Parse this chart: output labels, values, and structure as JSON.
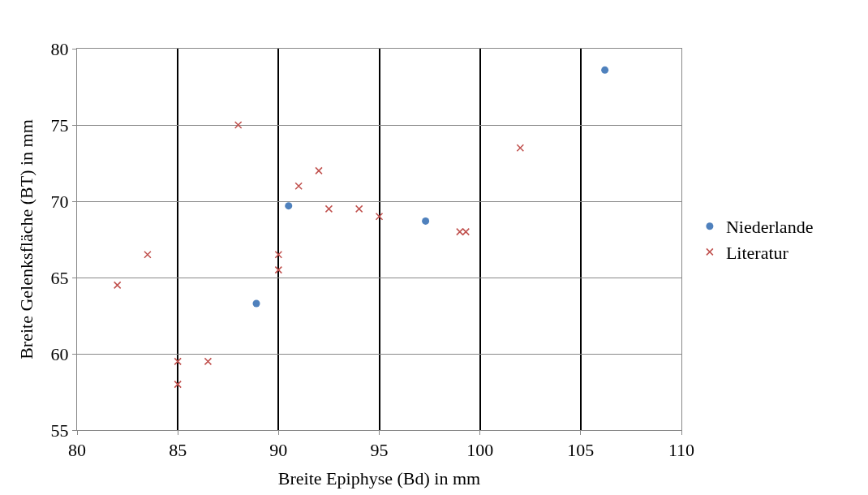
{
  "chart_data": {
    "type": "scatter",
    "xlabel": "Breite Epiphyse (Bd) in mm",
    "ylabel": "Breite Gelenksfläche (BT) in mm",
    "xlim": [
      80,
      110
    ],
    "xticks": [
      80,
      85,
      90,
      95,
      100,
      105,
      110
    ],
    "ylim": [
      55,
      80
    ],
    "yticks": [
      55,
      60,
      65,
      70,
      75,
      80
    ],
    "grid": true,
    "legend": "right",
    "series": [
      {
        "name": "Niederlande",
        "color": "#4f81bd",
        "marker": "circle",
        "x": [
          88.9,
          90.5,
          97.3,
          106.2
        ],
        "values": [
          63.3,
          69.7,
          68.7,
          78.6
        ]
      },
      {
        "name": "Literatur",
        "color": "#c0504d",
        "marker": "cross",
        "x": [
          82,
          83.5,
          85,
          85,
          86.5,
          88,
          90,
          90,
          91,
          92,
          92.5,
          94,
          95,
          99,
          99.3,
          102
        ],
        "values": [
          64.5,
          66.5,
          59.5,
          58,
          59.5,
          75,
          66.5,
          65.5,
          71,
          72,
          69.5,
          69.5,
          69,
          68,
          68,
          73.5
        ]
      }
    ]
  }
}
